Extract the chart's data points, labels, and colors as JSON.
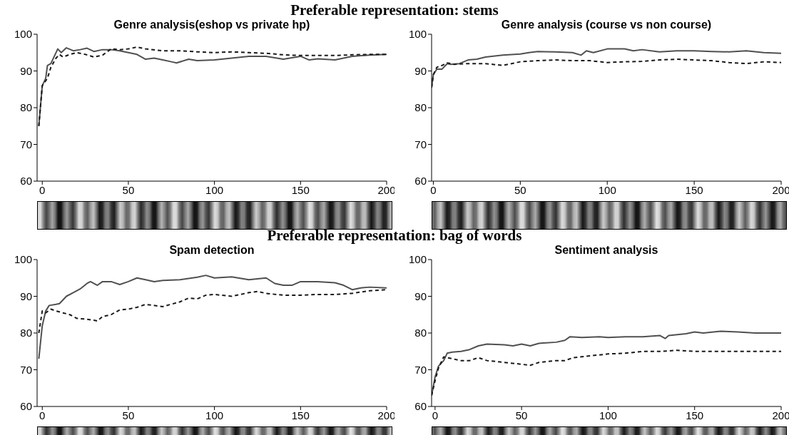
{
  "chart_data": [
    {
      "type": "line",
      "annotations": [
        "Preferable representation: stems"
      ],
      "title": "Genre analysis(eshop vs private hp)",
      "xlim": [
        -3,
        200
      ],
      "xticks": [
        0,
        50,
        100,
        150,
        200
      ],
      "ylim": [
        60,
        100
      ],
      "yticks": [
        60,
        70,
        80,
        90,
        100
      ],
      "marker": "none",
      "series": [
        {
          "color": "#505050",
          "line_style": "solid",
          "x": [
            -2,
            0,
            2,
            3,
            5,
            7,
            9,
            11,
            14,
            18,
            22,
            26,
            30,
            35,
            40,
            45,
            50,
            55,
            60,
            65,
            70,
            75,
            78,
            85,
            90,
            100,
            110,
            120,
            130,
            140,
            150,
            155,
            160,
            170,
            180,
            190,
            200
          ],
          "values": [
            75,
            86,
            88,
            91.5,
            92,
            94,
            96,
            95,
            96.3,
            95.5,
            95.8,
            96.2,
            95.3,
            95.8,
            95.8,
            95.5,
            95,
            94.5,
            93.2,
            93.5,
            93,
            92.5,
            92.2,
            93.2,
            92.8,
            93,
            93.5,
            94,
            94,
            93.2,
            94,
            93,
            93.3,
            93,
            94,
            94.3,
            94.5
          ]
        },
        {
          "color": "#1a1a1a",
          "line_style": "dashed",
          "x": [
            -2,
            0,
            3,
            5,
            8,
            10,
            12,
            16,
            20,
            25,
            30,
            35,
            40,
            45,
            50,
            55,
            60,
            70,
            80,
            90,
            100,
            110,
            120,
            130,
            140,
            150,
            160,
            170,
            180,
            190,
            200
          ],
          "values": [
            75,
            86,
            88,
            91,
            93.5,
            94.5,
            93.8,
            94.5,
            95,
            94.5,
            93.8,
            94.3,
            96,
            95.8,
            96,
            96.5,
            96,
            95.5,
            95.5,
            95.2,
            95,
            95.2,
            95,
            94.8,
            94.4,
            94.2,
            94.2,
            94.2,
            94.4,
            94.5,
            94.5
          ]
        }
      ]
    },
    {
      "type": "line",
      "title": "Genre analysis (course vs non course)",
      "xlim": [
        -1,
        200
      ],
      "xticks": [
        0,
        50,
        100,
        150,
        200
      ],
      "ylim": [
        60,
        100
      ],
      "yticks": [
        60,
        70,
        80,
        90,
        100
      ],
      "marker": "none",
      "series": [
        {
          "color": "#505050",
          "line_style": "solid",
          "x": [
            -1,
            0,
            2,
            5,
            8,
            10,
            15,
            20,
            25,
            30,
            40,
            50,
            55,
            60,
            70,
            80,
            85,
            88,
            92,
            100,
            110,
            115,
            120,
            130,
            140,
            150,
            160,
            170,
            180,
            190,
            200
          ],
          "values": [
            85.5,
            89,
            90.5,
            90.5,
            92,
            91.8,
            92,
            93,
            93.2,
            93.8,
            94.3,
            94.6,
            95,
            95.3,
            95.2,
            95,
            94.3,
            95.5,
            95,
            96,
            96,
            95.5,
            95.8,
            95.2,
            95.5,
            95.5,
            95.3,
            95.2,
            95.5,
            95,
            94.8
          ]
        },
        {
          "color": "#1a1a1a",
          "line_style": "dashed",
          "x": [
            -1,
            0,
            2,
            5,
            8,
            12,
            20,
            30,
            40,
            50,
            60,
            70,
            80,
            90,
            100,
            110,
            120,
            130,
            140,
            150,
            160,
            170,
            180,
            190,
            200
          ],
          "values": [
            85.5,
            89,
            91,
            91.5,
            92.2,
            91.8,
            92,
            92,
            91.5,
            92.5,
            92.8,
            93,
            92.8,
            92.8,
            92.3,
            92.5,
            92.6,
            93,
            93.2,
            93,
            92.8,
            92.3,
            92,
            92.5,
            92.3
          ]
        }
      ]
    },
    {
      "type": "line",
      "annotations": [
        "Preferable representation: bag of words"
      ],
      "title": "Spam detection",
      "xlim": [
        -3,
        200
      ],
      "xticks": [
        0,
        50,
        100,
        150,
        200
      ],
      "ylim": [
        60,
        100
      ],
      "yticks": [
        60,
        70,
        80,
        90,
        100
      ],
      "marker": "none",
      "series": [
        {
          "color": "#505050",
          "line_style": "solid",
          "x": [
            -2,
            0,
            2,
            4,
            8,
            10,
            14,
            18,
            22,
            26,
            28,
            32,
            35,
            40,
            45,
            50,
            55,
            60,
            65,
            70,
            80,
            90,
            95,
            100,
            110,
            120,
            130,
            135,
            140,
            145,
            150,
            160,
            170,
            175,
            180,
            185,
            190,
            200
          ],
          "values": [
            73,
            82,
            86,
            87.5,
            87.8,
            88,
            90,
            91,
            92,
            93.5,
            94,
            93,
            94,
            94,
            93.2,
            94,
            95,
            94.5,
            94,
            94.3,
            94.5,
            95.2,
            95.7,
            95,
            95.3,
            94.5,
            95,
            93.5,
            93,
            93,
            94,
            94,
            93.7,
            93,
            91.8,
            92.3,
            92.5,
            92.3
          ]
        },
        {
          "color": "#1a1a1a",
          "line_style": "dashed",
          "x": [
            -2,
            0,
            2,
            5,
            8,
            12,
            16,
            20,
            25,
            30,
            32,
            35,
            40,
            45,
            50,
            55,
            60,
            70,
            80,
            85,
            90,
            95,
            100,
            110,
            120,
            125,
            130,
            140,
            150,
            160,
            170,
            180,
            190,
            200
          ],
          "values": [
            80,
            86,
            85.5,
            86.5,
            86,
            85.5,
            85,
            84,
            83.8,
            83.5,
            83.3,
            84.5,
            85,
            86.3,
            86.5,
            87,
            87.8,
            87.2,
            88.5,
            89.5,
            89.3,
            90.3,
            90.5,
            90,
            91,
            91.3,
            90.8,
            90.3,
            90.3,
            90.5,
            90.5,
            90.8,
            91.5,
            91.8
          ]
        }
      ]
    },
    {
      "type": "line",
      "title": "Sentiment analysis",
      "xlim": [
        -2,
        200
      ],
      "xticks": [
        0,
        50,
        100,
        150,
        200
      ],
      "ylim": [
        60,
        100
      ],
      "yticks": [
        60,
        70,
        80,
        90,
        100
      ],
      "marker": "none",
      "series": [
        {
          "color": "#505050",
          "line_style": "solid",
          "x": [
            -2,
            0,
            2,
            5,
            7,
            10,
            15,
            20,
            25,
            30,
            40,
            45,
            50,
            55,
            60,
            70,
            75,
            78,
            85,
            95,
            100,
            110,
            120,
            130,
            133,
            135,
            145,
            150,
            155,
            165,
            175,
            185,
            190,
            200
          ],
          "values": [
            63,
            68,
            71,
            72.5,
            74.5,
            74.8,
            75,
            75.5,
            76.5,
            77,
            76.8,
            76.5,
            77,
            76.5,
            77.2,
            77.5,
            78,
            79,
            78.8,
            79,
            78.8,
            79,
            79,
            79.3,
            78.5,
            79.3,
            79.8,
            80.3,
            80,
            80.5,
            80.3,
            80,
            80,
            80
          ]
        },
        {
          "color": "#1a1a1a",
          "line_style": "dashed",
          "x": [
            -2,
            0,
            2,
            5,
            10,
            15,
            20,
            25,
            30,
            40,
            50,
            55,
            60,
            70,
            75,
            80,
            90,
            100,
            110,
            120,
            130,
            140,
            150,
            160,
            170,
            180,
            190,
            200
          ],
          "values": [
            63,
            67,
            70.5,
            73.5,
            73,
            72.5,
            72.5,
            73.3,
            72.5,
            72,
            71.5,
            71.2,
            72,
            72.5,
            72.5,
            73.3,
            73.8,
            74.3,
            74.5,
            75,
            75,
            75.3,
            75,
            75,
            75,
            75,
            75,
            75
          ]
        }
      ]
    }
  ]
}
